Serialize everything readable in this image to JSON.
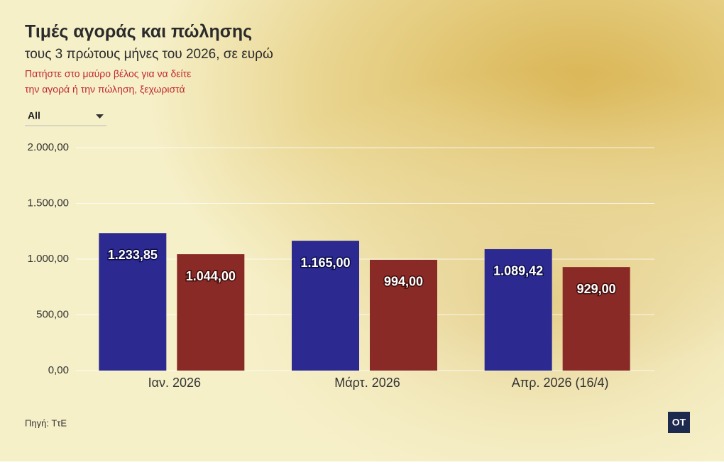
{
  "chart_data": {
    "type": "bar",
    "title": "Τιμές αγοράς και πώλησης",
    "subtitle": "τους 3 πρώτους μήνες του 2026, σε ευρώ",
    "annotations": [
      "Πατήστε στο μαύρο βέλος για να δείτε",
      "την αγορά ή την πώληση, ξεχωριστά"
    ],
    "filter": "All",
    "source": "Πηγή: ΤτΕ",
    "logo": "OT",
    "categories": [
      "Ιαν. 2026",
      "Μάρτ. 2026",
      "Απρ. 2026 (16/4)"
    ],
    "series": [
      {
        "color": "#2c2a90",
        "values": [
          1233.85,
          1165,
          1089.42
        ],
        "value_labels": [
          "1.233,85",
          "1.165,00",
          "1.089,42"
        ]
      },
      {
        "color": "#8a2a26",
        "values": [
          1044,
          994,
          929
        ],
        "value_labels": [
          "1.044,00",
          "994,00",
          "929,00"
        ]
      }
    ],
    "ylim": [
      0,
      2000
    ],
    "yticks": [
      {
        "value": 0,
        "label": "0,00"
      },
      {
        "value": 500,
        "label": "500,00"
      },
      {
        "value": 1000,
        "label": "1.000,00"
      },
      {
        "value": 1500,
        "label": "1.500,00"
      },
      {
        "value": 2000,
        "label": "2.000,00"
      }
    ],
    "grid": true
  }
}
